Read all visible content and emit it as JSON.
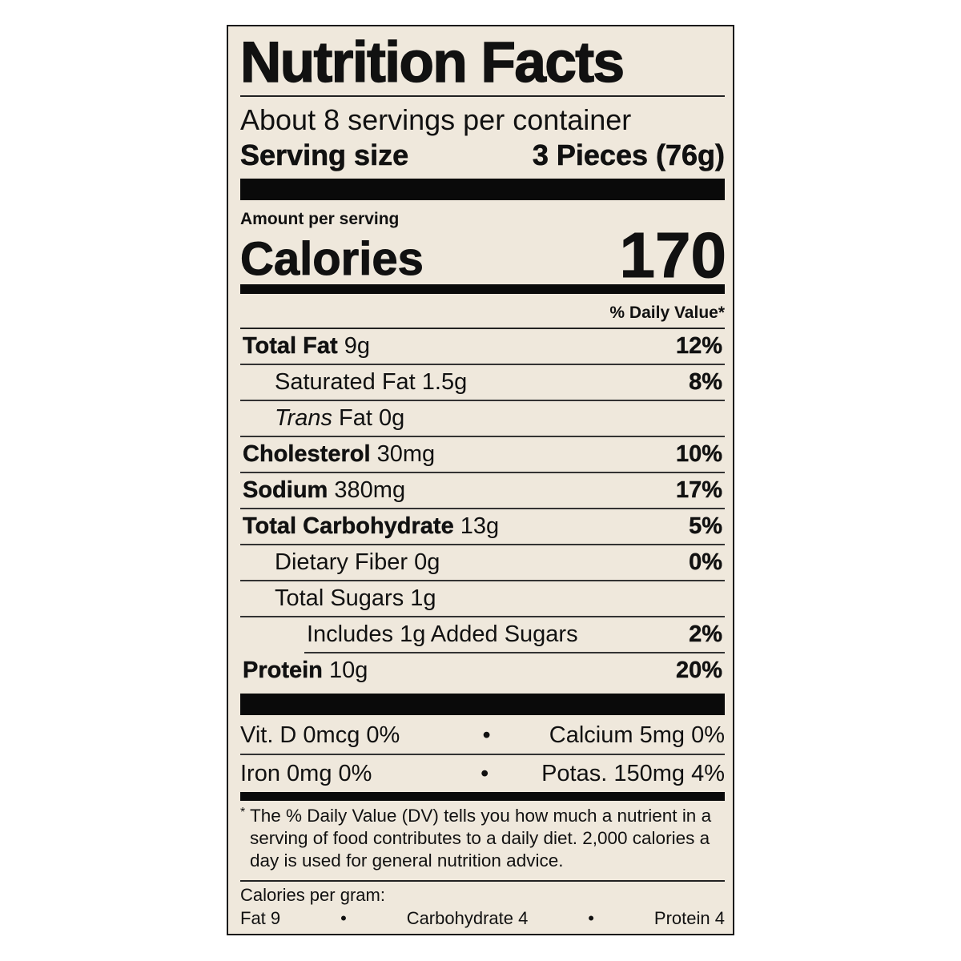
{
  "title": "Nutrition Facts",
  "servings_per_container": "About 8 servings per container",
  "serving_size": {
    "label": "Serving size",
    "value": "3 Pieces (76g)"
  },
  "amount_per_serving": "Amount per serving",
  "calories": {
    "label": "Calories",
    "value": "170"
  },
  "daily_value_header": "% Daily Value*",
  "nutrients": [
    {
      "name": "Total Fat",
      "amount": "9g",
      "dv": "12%",
      "bold": true,
      "indent": 0
    },
    {
      "name": "Saturated Fat",
      "amount": "1.5g",
      "dv": "8%",
      "bold": false,
      "indent": 1
    },
    {
      "name": "Trans",
      "amount": "Fat 0g",
      "dv": "",
      "bold": false,
      "indent": 1
    },
    {
      "name": "Cholesterol",
      "amount": "30mg",
      "dv": "10%",
      "bold": true,
      "indent": 0
    },
    {
      "name": "Sodium",
      "amount": "380mg",
      "dv": "17%",
      "bold": true,
      "indent": 0
    },
    {
      "name": "Total Carbohydrate",
      "amount": "13g",
      "dv": "5%",
      "bold": true,
      "indent": 0
    },
    {
      "name": "Dietary Fiber",
      "amount": "0g",
      "dv": "0%",
      "bold": false,
      "indent": 1
    },
    {
      "name": "Total Sugars",
      "amount": "1g",
      "dv": "",
      "bold": false,
      "indent": 1
    },
    {
      "name": "Includes 1g Added Sugars",
      "amount": "",
      "dv": "2%",
      "bold": false,
      "indent": 2
    },
    {
      "name": "Protein",
      "amount": "10g",
      "dv": "20%",
      "bold": true,
      "indent": 0
    }
  ],
  "vitamins": [
    {
      "left": "Vit. D 0mcg 0%",
      "sep": "•",
      "right": "Calcium 5mg 0%"
    },
    {
      "left": "Iron 0mg 0%",
      "sep": "•",
      "right": "Potas. 150mg 4%"
    }
  ],
  "footnote": {
    "star": "*",
    "text": "The % Daily Value (DV) tells you how much a nutrient in a serving of food contributes to a daily diet. 2,000 calories a day is used for general nutrition advice."
  },
  "calories_per_gram": {
    "label": "Calories per gram:",
    "fat": "Fat 9",
    "sep": "•",
    "carb": "Carbohydrate 4",
    "protein": "Protein 4"
  },
  "colors": {
    "background": "#efe8dc",
    "ink": "#111111"
  }
}
